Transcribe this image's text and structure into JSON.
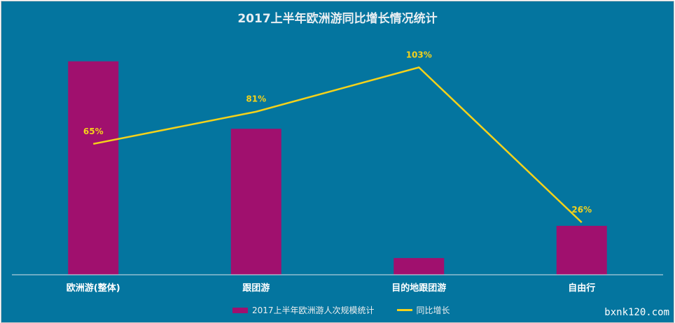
{
  "chart_data": {
    "type": "bar+line",
    "title": "2017上半年欧洲游同比增长情况统计",
    "categories": [
      "欧洲游(整体)",
      "跟团游",
      "目的地跟团游",
      "自由行"
    ],
    "series": [
      {
        "name": "2017上半年欧洲游人次规模统计",
        "type": "bar",
        "values": [
          106,
          72.5,
          8.3,
          24.3
        ],
        "color": "#a0106e",
        "note": "relative scale, no axis shown"
      },
      {
        "name": "同比增长",
        "type": "line",
        "values": [
          65,
          81,
          103,
          26
        ],
        "labels": [
          "65%",
          "81%",
          "103%",
          "26%"
        ],
        "color": "#f5d21a"
      }
    ],
    "ylim": [
      0,
      120
    ],
    "grid": false,
    "legend": "bottom"
  },
  "watermark": "bxnk120.com"
}
